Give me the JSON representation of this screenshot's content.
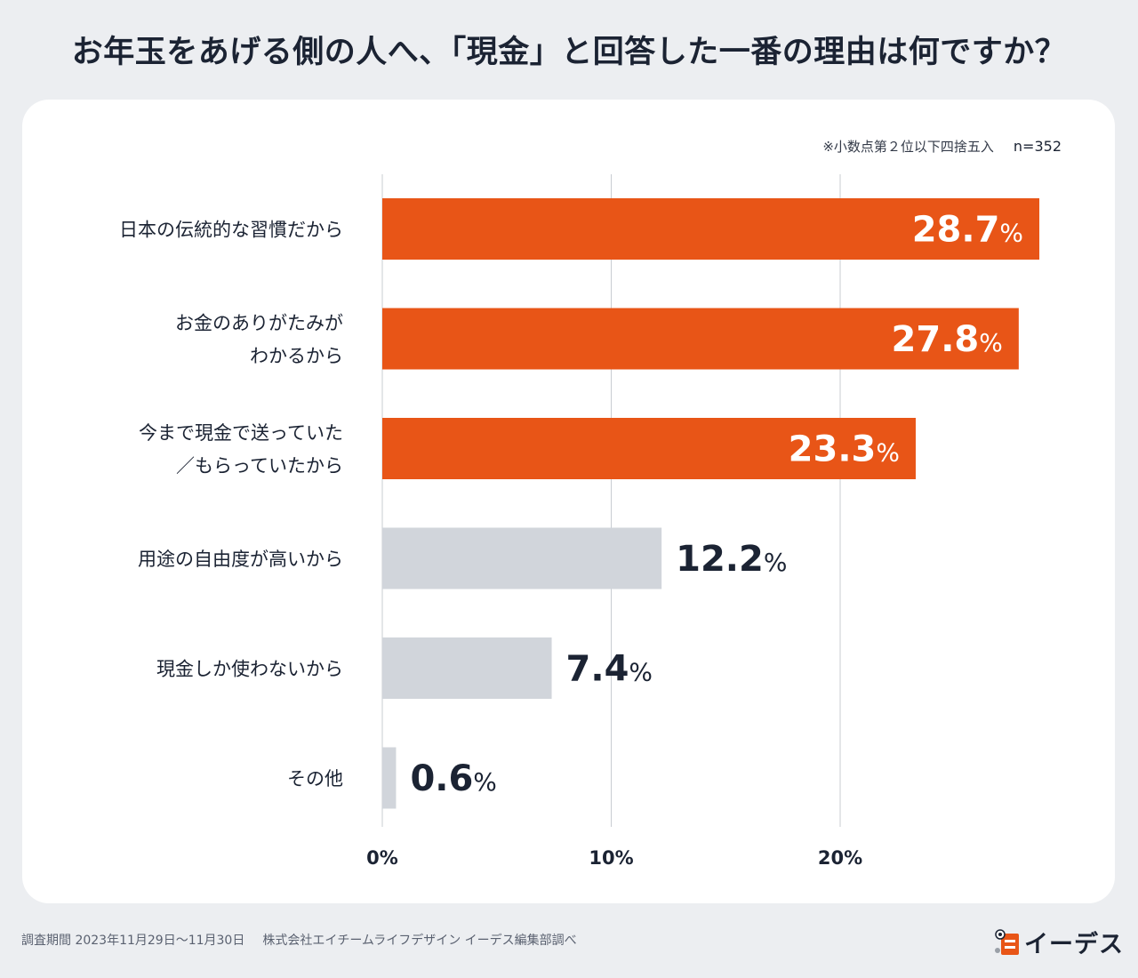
{
  "header": {
    "title": "お年玉をあげる側の人へ、「現金」と回答した一番の理由は何ですか？"
  },
  "note": {
    "rounding": "※小数点第２位以下四捨五入",
    "n": "n=352"
  },
  "chart_data": {
    "type": "bar",
    "orientation": "horizontal",
    "title": "お年玉をあげる側の人へ、「現金」と回答した一番の理由は何ですか？",
    "categories": [
      [
        "日本の伝統的な習慣だから"
      ],
      [
        "お金のありがたみが",
        "わかるから"
      ],
      [
        "今まで現金で送っていた",
        "／もらっていたから"
      ],
      [
        "用途の自由度が高いから"
      ],
      [
        "現金しか使わないから"
      ],
      [
        "その他"
      ]
    ],
    "values": [
      28.7,
      27.8,
      23.3,
      12.2,
      7.4,
      0.6
    ],
    "value_labels": [
      "28.7",
      "27.8",
      "23.3",
      "12.2",
      "7.4",
      "0.6"
    ],
    "value_suffix": "%",
    "highlight_count": 3,
    "xticks": [
      "0%",
      "10%",
      "20%"
    ],
    "xtick_values": [
      0,
      10,
      20
    ],
    "xlim": [
      0,
      30
    ],
    "grid": true,
    "colors": {
      "highlight": "#e85517",
      "normal": "#d1d5db",
      "grid": "#c8ccd2",
      "label_inside": "#ffffff",
      "label_outside": "#1b2333"
    }
  },
  "footer": {
    "period": "調査期間 2023年11月29日〜11月30日",
    "source": "株式会社エイチームライフデザイン イーデス編集部調べ"
  },
  "logo": {
    "text": "イーデス",
    "icon": "owl-icon"
  }
}
